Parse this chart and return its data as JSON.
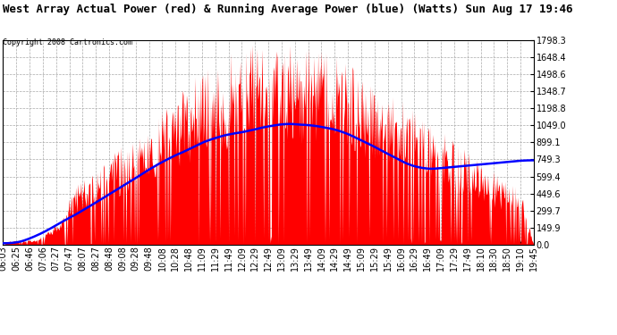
{
  "title": "West Array Actual Power (red) & Running Average Power (blue) (Watts) Sun Aug 17 19:46",
  "copyright": "Copyright 2008 Cartronics.com",
  "background_color": "#ffffff",
  "plot_bg_color": "#ffffff",
  "grid_color": "#aaaaaa",
  "y_max": 1798.3,
  "y_min": 0.0,
  "y_ticks": [
    0.0,
    149.9,
    299.7,
    449.6,
    599.4,
    749.3,
    899.1,
    1049.0,
    1198.8,
    1348.7,
    1498.6,
    1648.4,
    1798.3
  ],
  "y_tick_labels": [
    "0.0",
    "149.9",
    "299.7",
    "449.6",
    "599.4",
    "749.3",
    "899.1",
    "1049.0",
    "1198.8",
    "1348.7",
    "1498.6",
    "1648.4",
    "1798.3"
  ],
  "x_labels": [
    "06:03",
    "06:25",
    "06:46",
    "07:06",
    "07:27",
    "07:47",
    "08:07",
    "08:27",
    "08:48",
    "09:08",
    "09:28",
    "09:48",
    "10:08",
    "10:28",
    "10:48",
    "11:09",
    "11:29",
    "11:49",
    "12:09",
    "12:29",
    "12:49",
    "13:09",
    "13:29",
    "13:49",
    "14:09",
    "14:29",
    "14:49",
    "15:09",
    "15:29",
    "15:49",
    "16:09",
    "16:29",
    "16:49",
    "17:09",
    "17:29",
    "17:49",
    "18:10",
    "18:30",
    "18:50",
    "19:10",
    "19:45"
  ],
  "actual_color": "#ff0000",
  "avg_color": "#0000ff",
  "title_fontsize": 9,
  "copyright_fontsize": 6,
  "tick_fontsize": 7
}
